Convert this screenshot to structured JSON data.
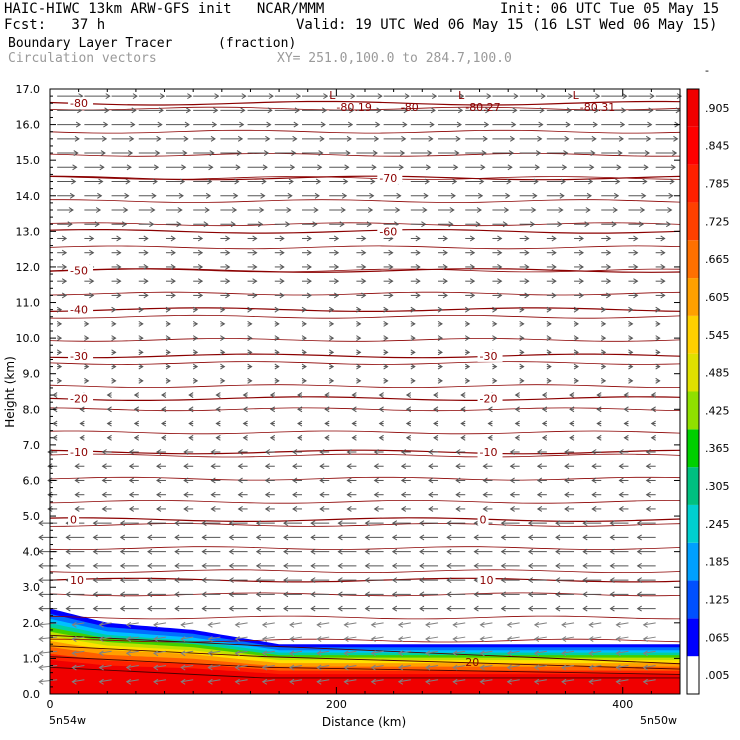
{
  "header": {
    "line1_left": "HAIC-HIWC 13km ARW-GFS init   NCAR/MMM",
    "line1_right": "Init: 06 UTC Tue 05 May 15",
    "line2_left": "Fcst:   37 h",
    "line2_right": "Valid: 19 UTC Wed 06 May 15 (16 LST Wed 06 May 15)",
    "line3_left": "Boundary Layer Tracer",
    "line3_mid": "(fraction)",
    "line4_left": "Circulation vectors",
    "line4_mid": "XY= 251.0,100.0 to 284.7,100.0"
  },
  "colors": {
    "contour": "#8b0000",
    "vector": "#555555",
    "colorbar": [
      "#ffffff",
      "#0000ff",
      "#0050ff",
      "#00a0ff",
      "#00d0d0",
      "#00c080",
      "#00d000",
      "#90e000",
      "#e0e000",
      "#ffd000",
      "#ffa000",
      "#ff7000",
      "#ff4000",
      "#ff2000",
      "#ff0000",
      "#f00000"
    ]
  },
  "chart_data": {
    "type": "heatmap",
    "title": "Boundary Layer Tracer",
    "units": "(fraction)",
    "xlabel": "Distance (km)",
    "ylabel": "Height (km)",
    "xlim": [
      0,
      440
    ],
    "ylim": [
      0,
      17
    ],
    "x_ticks": [
      0,
      200,
      400
    ],
    "y_ticks": [
      "0.0",
      "1.0",
      "2.0",
      "3.0",
      "4.0",
      "5.0",
      "6.0",
      "7.0",
      "8.0",
      "9.0",
      "10.0",
      "11.0",
      "12.0",
      "13.0",
      "14.0",
      "15.0",
      "16.0",
      "17.0"
    ],
    "x_endpoints": [
      "5n54w",
      "5n50w"
    ],
    "colorbar_labels": [
      ".005",
      ".065",
      ".125",
      ".185",
      ".245",
      ".305",
      ".365",
      ".425",
      ".485",
      ".545",
      ".605",
      ".665",
      ".725",
      ".785",
      ".845",
      ".905",
      "-"
    ],
    "temperature_contours": [
      {
        "label": "10",
        "y": 3.2
      },
      {
        "label": "0",
        "y": 4.9
      },
      {
        "label": "-10",
        "y": 6.8
      },
      {
        "label": "-20",
        "y": 8.3
      },
      {
        "label": "-30",
        "y": 9.5
      },
      {
        "label": "-40",
        "y": 10.8
      },
      {
        "label": "-50",
        "y": 11.9
      },
      {
        "label": "-60",
        "y": 13.0
      },
      {
        "label": "-70",
        "y": 14.5
      },
      {
        "label": "-80",
        "y": 16.6
      }
    ],
    "top_labels": [
      {
        "label": "L",
        "x": 195
      },
      {
        "label": "-80.19",
        "x": 200
      },
      {
        "label": "-80",
        "x": 245
      },
      {
        "label": "L",
        "x": 285
      },
      {
        "label": "-80.27",
        "x": 290
      },
      {
        "label": "L",
        "x": 365
      },
      {
        "label": "-80.31",
        "x": 370
      }
    ],
    "extra_contour_labels": [
      {
        "label": "20",
        "x": 290,
        "y": 0.9
      }
    ],
    "boundary_layer_top": [
      {
        "x": 0,
        "h": 2.4
      },
      {
        "x": 40,
        "h": 2.0
      },
      {
        "x": 100,
        "h": 1.8
      },
      {
        "x": 160,
        "h": 1.4
      },
      {
        "x": 440,
        "h": 1.4
      }
    ]
  }
}
